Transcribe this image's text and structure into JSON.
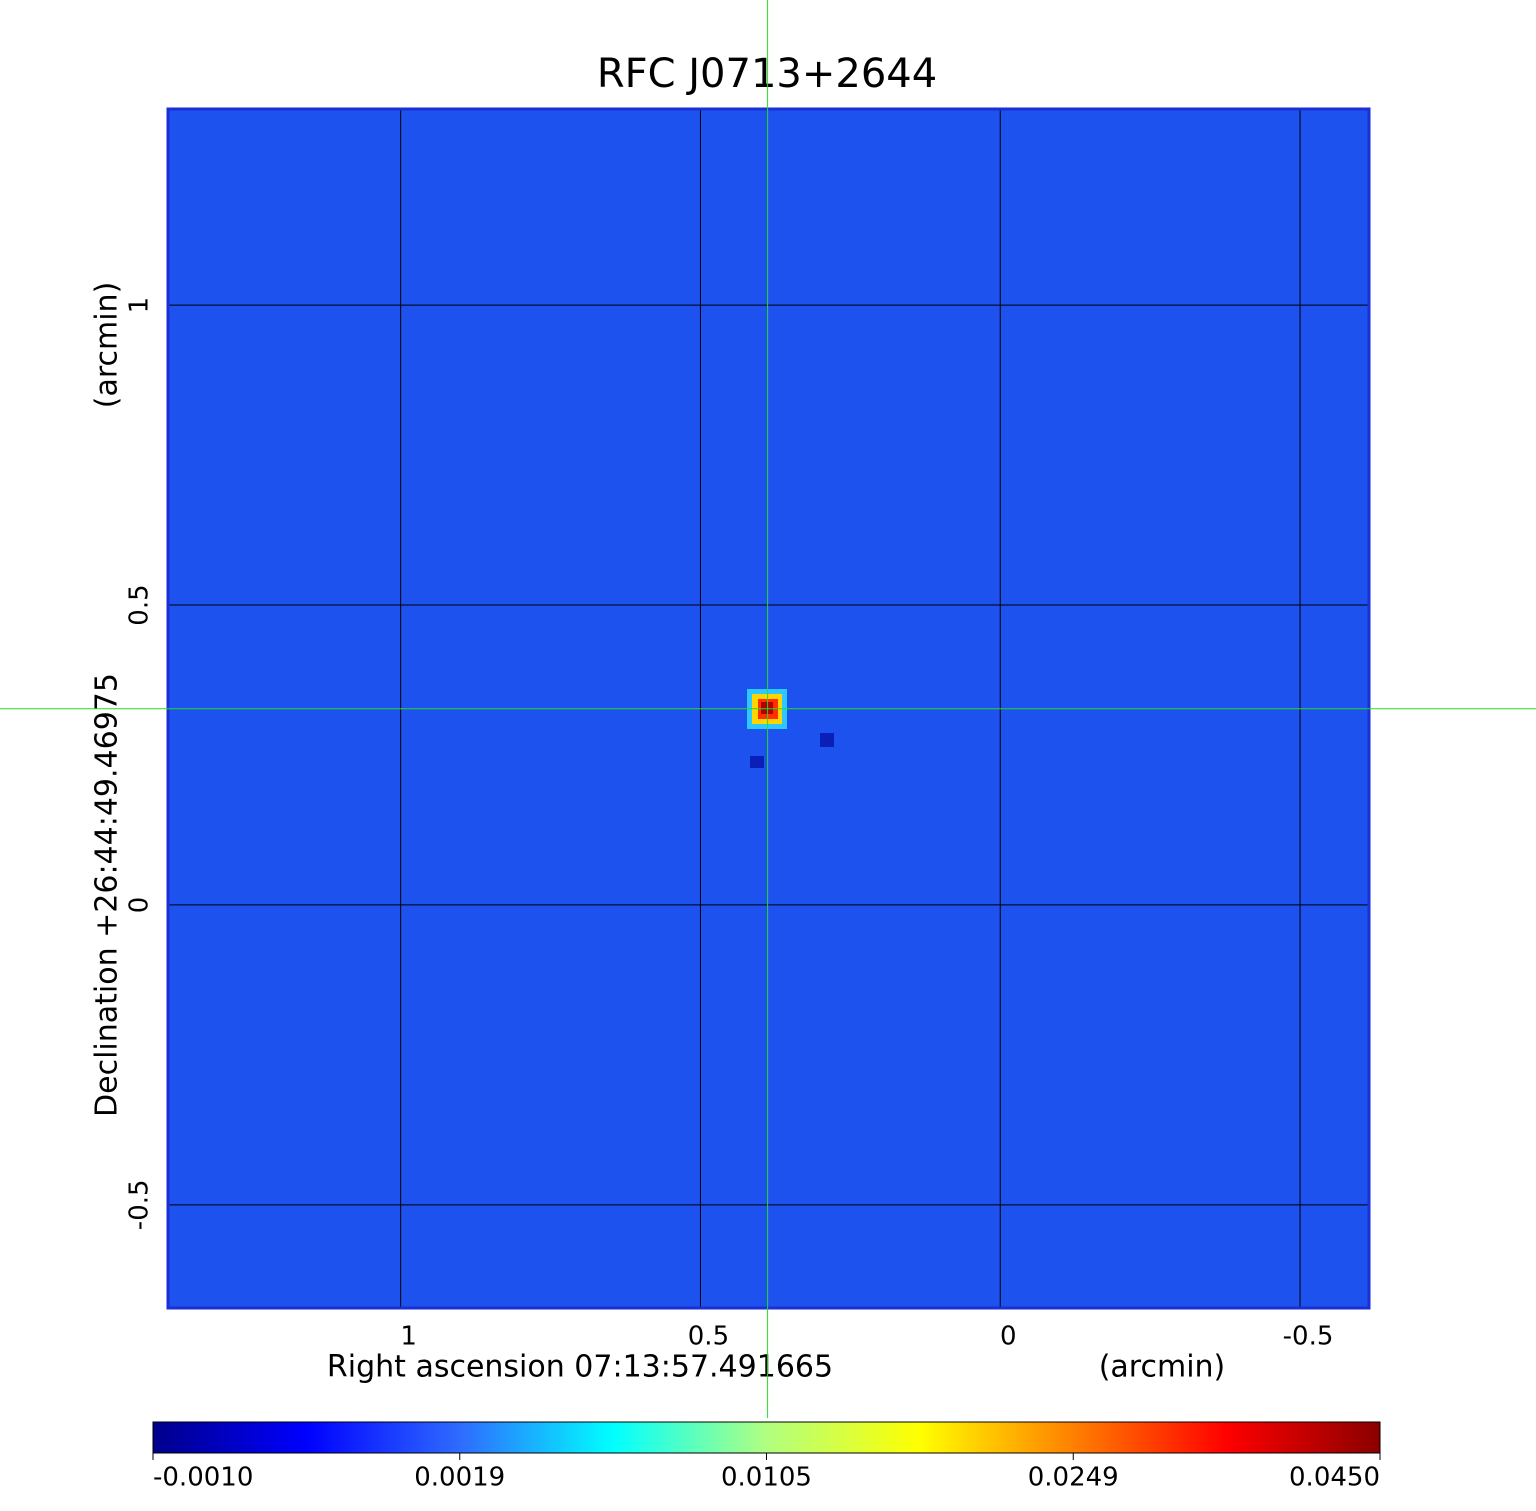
{
  "chart_data": {
    "type": "image",
    "title": "RFC J0713+2644",
    "title_color": "#1010d0",
    "x_label": "Right ascension  07:13:57.491665",
    "x_unit": "(arcmin)",
    "y_label": "Declination  +26:44:49.46975",
    "y_unit": "(arcmin)",
    "xlim": [
      1.388,
      -0.615
    ],
    "ylim": [
      -0.672,
      1.327
    ],
    "xticks": [
      1.0,
      0.5,
      0.0,
      -0.5
    ],
    "yticks": [
      1.0,
      0.5,
      0.0,
      -0.5
    ],
    "grid": true,
    "crosshair": {
      "x": 0.388,
      "y": 0.327,
      "color": "#22dd22"
    },
    "colorbar": {
      "ticks": [
        {
          "value": -0.001,
          "label": "-0.0010"
        },
        {
          "value": 0.0019,
          "label": "0.0019"
        },
        {
          "value": 0.0105,
          "label": "0.0105"
        },
        {
          "value": 0.0249,
          "label": "0.0249"
        },
        {
          "value": 0.045,
          "label": "0.0450"
        }
      ],
      "colormap": [
        "#00008b",
        "#0000ff",
        "#2f6bff",
        "#00ffff",
        "#b0ff80",
        "#ffff00",
        "#ff8000",
        "#ff0000",
        "#8b0000"
      ]
    }
  }
}
